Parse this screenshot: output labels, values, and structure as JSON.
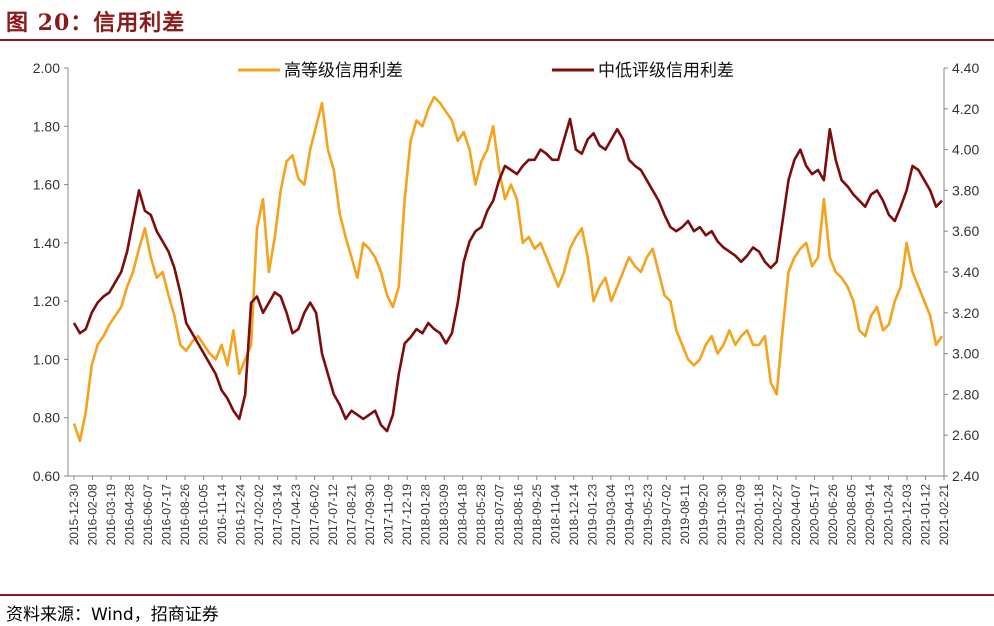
{
  "header": {
    "title": "图 20：信用利差"
  },
  "footer": {
    "source": "资料来源：Wind，招商证券"
  },
  "chart_data": {
    "type": "line",
    "title": "",
    "legend_position": "top",
    "grid": false,
    "left_axis": {
      "min": 0.6,
      "max": 2.0,
      "ticks": [
        "0.60",
        "0.80",
        "1.00",
        "1.20",
        "1.40",
        "1.60",
        "1.80",
        "2.00"
      ]
    },
    "right_axis": {
      "min": 2.4,
      "max": 4.4,
      "ticks": [
        "2.40",
        "2.60",
        "2.80",
        "3.00",
        "3.20",
        "3.40",
        "3.60",
        "3.80",
        "4.00",
        "4.20",
        "4.40"
      ]
    },
    "x_tick_labels": [
      "2015-12-30",
      "2016-02-08",
      "2016-03-19",
      "2016-04-28",
      "2016-06-07",
      "2016-07-17",
      "2016-08-26",
      "2016-10-05",
      "2016-11-14",
      "2016-12-24",
      "2017-02-02",
      "2017-03-14",
      "2017-04-23",
      "2017-06-02",
      "2017-07-12",
      "2017-08-21",
      "2017-09-30",
      "2017-11-09",
      "2017-12-19",
      "2018-01-28",
      "2018-03-09",
      "2018-04-18",
      "2018-05-28",
      "2018-07-07",
      "2018-08-16",
      "2018-09-25",
      "2018-11-04",
      "2018-12-14",
      "2019-01-23",
      "2019-03-04",
      "2019-04-13",
      "2019-05-23",
      "2019-07-02",
      "2019-08-11",
      "2019-09-20",
      "2019-10-30",
      "2019-12-09",
      "2020-01-18",
      "2020-02-27",
      "2020-04-07",
      "2020-05-17",
      "2020-06-26",
      "2020-08-05",
      "2020-09-14",
      "2020-10-24",
      "2020-12-03",
      "2021-01-12",
      "2021-02-21"
    ],
    "series": [
      {
        "name": "高等级信用利差",
        "axis": "left",
        "color": "#f5a21c",
        "values": [
          0.78,
          0.72,
          0.82,
          0.98,
          1.05,
          1.08,
          1.12,
          1.15,
          1.18,
          1.25,
          1.3,
          1.38,
          1.45,
          1.35,
          1.28,
          1.3,
          1.22,
          1.15,
          1.05,
          1.03,
          1.06,
          1.08,
          1.05,
          1.02,
          1.0,
          1.05,
          0.98,
          1.1,
          0.95,
          1.0,
          1.05,
          1.45,
          1.55,
          1.3,
          1.42,
          1.58,
          1.68,
          1.7,
          1.62,
          1.6,
          1.72,
          1.8,
          1.88,
          1.72,
          1.65,
          1.5,
          1.42,
          1.35,
          1.28,
          1.4,
          1.38,
          1.35,
          1.3,
          1.22,
          1.18,
          1.25,
          1.55,
          1.75,
          1.82,
          1.8,
          1.86,
          1.9,
          1.88,
          1.85,
          1.82,
          1.75,
          1.78,
          1.72,
          1.6,
          1.68,
          1.72,
          1.8,
          1.65,
          1.55,
          1.6,
          1.55,
          1.4,
          1.42,
          1.38,
          1.4,
          1.35,
          1.3,
          1.25,
          1.3,
          1.38,
          1.42,
          1.45,
          1.35,
          1.2,
          1.25,
          1.28,
          1.2,
          1.25,
          1.3,
          1.35,
          1.32,
          1.3,
          1.35,
          1.38,
          1.3,
          1.22,
          1.2,
          1.1,
          1.05,
          1.0,
          0.98,
          1.0,
          1.05,
          1.08,
          1.02,
          1.05,
          1.1,
          1.05,
          1.08,
          1.1,
          1.05,
          1.05,
          1.08,
          0.92,
          0.88,
          1.1,
          1.3,
          1.35,
          1.38,
          1.4,
          1.32,
          1.35,
          1.55,
          1.35,
          1.3,
          1.28,
          1.25,
          1.2,
          1.1,
          1.08,
          1.15,
          1.18,
          1.1,
          1.12,
          1.2,
          1.25,
          1.4,
          1.3,
          1.25,
          1.2,
          1.15,
          1.05,
          1.08
        ]
      },
      {
        "name": "中低评级信用利差",
        "axis": "right",
        "color": "#7d0c0c",
        "values": [
          3.15,
          3.1,
          3.12,
          3.2,
          3.25,
          3.28,
          3.3,
          3.35,
          3.4,
          3.5,
          3.65,
          3.8,
          3.7,
          3.68,
          3.6,
          3.55,
          3.5,
          3.42,
          3.3,
          3.15,
          3.1,
          3.05,
          3.0,
          2.95,
          2.9,
          2.82,
          2.78,
          2.72,
          2.68,
          2.8,
          3.25,
          3.28,
          3.2,
          3.25,
          3.3,
          3.28,
          3.2,
          3.1,
          3.12,
          3.2,
          3.25,
          3.2,
          3.0,
          2.9,
          2.8,
          2.75,
          2.68,
          2.72,
          2.7,
          2.68,
          2.7,
          2.72,
          2.65,
          2.62,
          2.7,
          2.9,
          3.05,
          3.08,
          3.12,
          3.1,
          3.15,
          3.12,
          3.1,
          3.05,
          3.1,
          3.25,
          3.45,
          3.55,
          3.6,
          3.62,
          3.7,
          3.75,
          3.85,
          3.92,
          3.9,
          3.88,
          3.92,
          3.95,
          3.95,
          4.0,
          3.98,
          3.95,
          3.95,
          4.05,
          4.15,
          4.0,
          3.98,
          4.05,
          4.08,
          4.02,
          4.0,
          4.05,
          4.1,
          4.05,
          3.95,
          3.92,
          3.9,
          3.85,
          3.8,
          3.75,
          3.68,
          3.62,
          3.6,
          3.62,
          3.65,
          3.6,
          3.62,
          3.58,
          3.6,
          3.55,
          3.52,
          3.5,
          3.48,
          3.45,
          3.48,
          3.52,
          3.5,
          3.45,
          3.42,
          3.45,
          3.65,
          3.85,
          3.95,
          4.0,
          3.92,
          3.88,
          3.9,
          3.85,
          4.1,
          3.95,
          3.85,
          3.82,
          3.78,
          3.75,
          3.72,
          3.78,
          3.8,
          3.75,
          3.68,
          3.65,
          3.72,
          3.8,
          3.92,
          3.9,
          3.85,
          3.8,
          3.72,
          3.75
        ]
      }
    ]
  }
}
